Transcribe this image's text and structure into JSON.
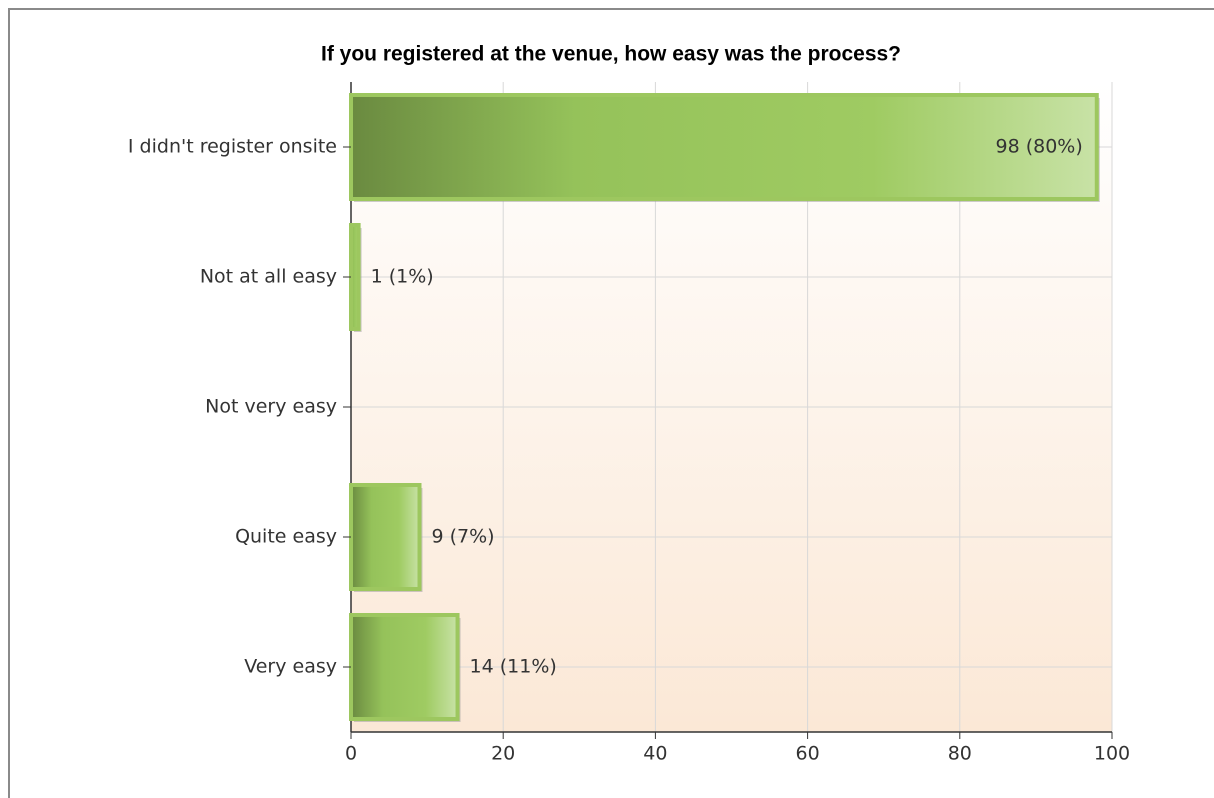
{
  "chart_data": {
    "type": "hbar",
    "title": "If you registered at the venue, how easy was the process?",
    "categories": [
      "I didn't register onsite",
      "Not at all easy",
      "Not very easy",
      "Quite easy",
      "Very easy"
    ],
    "values": [
      98,
      1,
      0,
      9,
      14
    ],
    "value_labels": [
      "98 (80%)",
      "1 (1%)",
      null,
      "9 (7%)",
      "14 (11%)"
    ],
    "color": "#9dc75f",
    "xlim": [
      0,
      100
    ],
    "xticks": [
      0,
      20,
      40,
      60,
      80,
      100
    ],
    "grid": true
  }
}
